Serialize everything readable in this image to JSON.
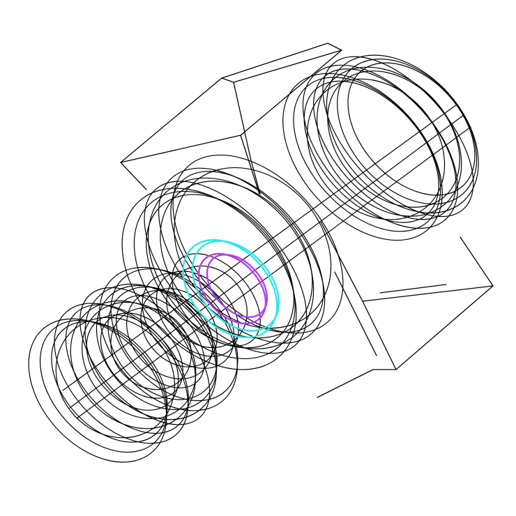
{
  "scene": {
    "background": "#ffffff",
    "wireframe_color": "#000000",
    "highlight_colors": {
      "outer_bore": "#2ee6e6",
      "inner_bore": "#b040f0"
    },
    "components": [
      "housing-box",
      "rear-flange-stack",
      "front-flange-stack",
      "bearing-stack",
      "bore-highlight-outer",
      "bore-highlight-inner"
    ]
  }
}
